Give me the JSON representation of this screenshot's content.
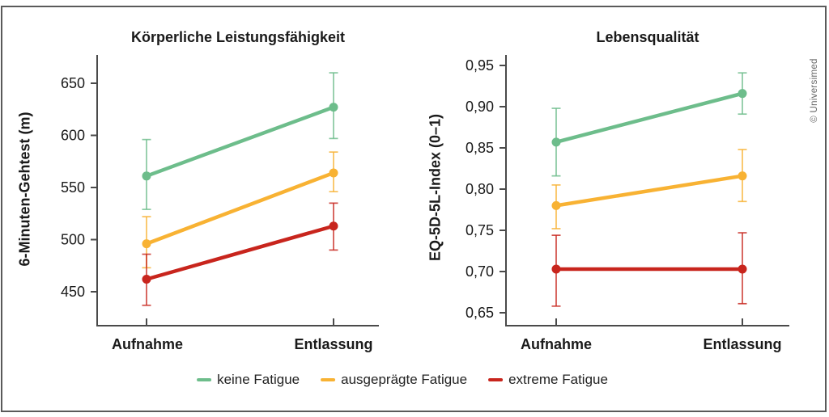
{
  "copyright": "© Universimed",
  "legend": [
    {
      "label": "keine Fatigue",
      "color": "#6dbd8b"
    },
    {
      "label": "ausgeprägte Fatigue",
      "color": "#f8b233"
    },
    {
      "label": "extreme Fatigue",
      "color": "#c8251d"
    }
  ],
  "chart_data": [
    {
      "type": "line",
      "title": "Körperliche Leistungsfähigkeit",
      "ylabel": "6-Minuten-Gehtest (m)",
      "categories": [
        "Aufnahme",
        "Entlassung"
      ],
      "yticks": [
        {
          "v": 450,
          "label": "450"
        },
        {
          "v": 500,
          "label": "500"
        },
        {
          "v": 550,
          "label": "550"
        },
        {
          "v": 600,
          "label": "600"
        },
        {
          "v": 650,
          "label": "650"
        }
      ],
      "ylim": [
        425,
        677
      ],
      "grid": false,
      "series": [
        {
          "name": "keine Fatigue",
          "color": "#6dbd8b",
          "values": [
            561,
            627
          ],
          "ci_low": [
            529,
            597
          ],
          "ci_high": [
            596,
            660
          ]
        },
        {
          "name": "ausgeprägte Fatigue",
          "color": "#f8b233",
          "values": [
            496,
            564
          ],
          "ci_low": [
            473,
            546
          ],
          "ci_high": [
            522,
            584
          ]
        },
        {
          "name": "extreme Fatigue",
          "color": "#c8251d",
          "values": [
            462,
            513
          ],
          "ci_low": [
            437,
            490
          ],
          "ci_high": [
            486,
            535
          ]
        }
      ]
    },
    {
      "type": "line",
      "title": "Lebensqualität",
      "ylabel": "EQ-5D-5L-Index (0–1)",
      "categories": [
        "Aufnahme",
        "Entlassung"
      ],
      "yticks": [
        {
          "v": 0.65,
          "label": "0,65"
        },
        {
          "v": 0.7,
          "label": "0,70"
        },
        {
          "v": 0.75,
          "label": "0,75"
        },
        {
          "v": 0.8,
          "label": "0,80"
        },
        {
          "v": 0.85,
          "label": "0,85"
        },
        {
          "v": 0.9,
          "label": "0,90"
        },
        {
          "v": 0.95,
          "label": "0,95"
        }
      ],
      "ylim": [
        0.62,
        0.97
      ],
      "grid": false,
      "series": [
        {
          "name": "keine Fatigue",
          "color": "#6dbd8b",
          "values": [
            0.857,
            0.916
          ],
          "ci_low": [
            0.816,
            0.891
          ],
          "ci_high": [
            0.898,
            0.941
          ]
        },
        {
          "name": "ausgeprägte Fatigue",
          "color": "#f8b233",
          "values": [
            0.78,
            0.816
          ],
          "ci_low": [
            0.752,
            0.785
          ],
          "ci_high": [
            0.805,
            0.848
          ]
        },
        {
          "name": "extreme Fatigue",
          "color": "#c8251d",
          "values": [
            0.703,
            0.703
          ],
          "ci_low": [
            0.658,
            0.661
          ],
          "ci_high": [
            0.744,
            0.747
          ]
        }
      ]
    }
  ],
  "style": {
    "axis_color": "#4a4a4a"
  }
}
